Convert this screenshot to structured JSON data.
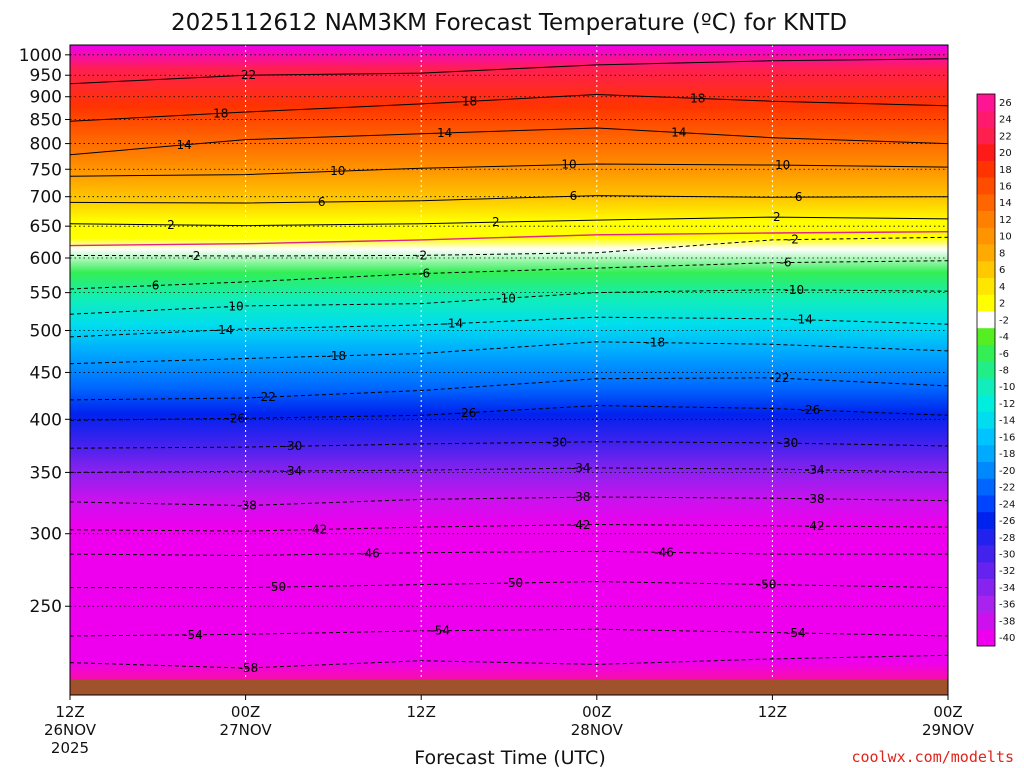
{
  "title": "2025112612 NAM3KM Forecast Temperature (ºC) for KNTD",
  "credit": "coolwx.com/modelts",
  "colors": {
    "ground": "#a0522d",
    "freezing_line": "#e0248a",
    "contour": "#000000"
  },
  "chart_data": {
    "type": "heatmap",
    "title": "2025112612 NAM3KM Forecast Temperature (ºC) for KNTD",
    "xlabel": "Forecast Time (UTC)",
    "ylabel": "",
    "x_hours_range": [
      0,
      60
    ],
    "y_pressure_range": [
      1025,
      200
    ],
    "y_scale": "log-pressure (hPa), decreasing upward",
    "grid": true,
    "colorbar": "right",
    "x_ticks": [
      {
        "hour": 0,
        "line1": "12Z",
        "line2": "26NOV",
        "line3": "2025"
      },
      {
        "hour": 12,
        "line1": "00Z",
        "line2": "27NOV",
        "line3": ""
      },
      {
        "hour": 24,
        "line1": "12Z",
        "line2": "",
        "line3": ""
      },
      {
        "hour": 36,
        "line1": "00Z",
        "line2": "28NOV",
        "line3": ""
      },
      {
        "hour": 48,
        "line1": "12Z",
        "line2": "",
        "line3": ""
      },
      {
        "hour": 60,
        "line1": "00Z",
        "line2": "29NOV",
        "line3": ""
      }
    ],
    "y_ticks": [
      {
        "p": 250,
        "label": "250"
      },
      {
        "p": 300,
        "label": "300"
      },
      {
        "p": 350,
        "label": "350"
      },
      {
        "p": 400,
        "label": "400"
      },
      {
        "p": 450,
        "label": "450"
      },
      {
        "p": 500,
        "label": "500"
      },
      {
        "p": 550,
        "label": "550"
      },
      {
        "p": 600,
        "label": "600"
      },
      {
        "p": 650,
        "label": "650"
      },
      {
        "p": 700,
        "label": "700"
      },
      {
        "p": 750,
        "label": "750"
      },
      {
        "p": 800,
        "label": "800"
      },
      {
        "p": 850,
        "label": "850"
      },
      {
        "p": 900,
        "label": "900"
      },
      {
        "p": 950,
        "label": "950"
      },
      {
        "p": 1000,
        "label": "1000"
      }
    ],
    "colorbar_levels": [
      {
        "label": "26",
        "color": "#ff1493"
      },
      {
        "label": "24",
        "color": "#ff1a6e"
      },
      {
        "label": "22",
        "color": "#ff1f4f"
      },
      {
        "label": "20",
        "color": "#ff1a1a"
      },
      {
        "label": "18",
        "color": "#ff3300"
      },
      {
        "label": "16",
        "color": "#ff4d00"
      },
      {
        "label": "14",
        "color": "#ff6600"
      },
      {
        "label": "12",
        "color": "#ff7f00"
      },
      {
        "label": "10",
        "color": "#ff9400"
      },
      {
        "label": "8",
        "color": "#ffaa00"
      },
      {
        "label": "6",
        "color": "#ffc800"
      },
      {
        "label": "4",
        "color": "#ffe600"
      },
      {
        "label": "2",
        "color": "#ffff00"
      },
      {
        "label": "-2",
        "color": "#ffffff"
      },
      {
        "label": "-4",
        "color": "#55ee22"
      },
      {
        "label": "-6",
        "color": "#33ee55"
      },
      {
        "label": "-8",
        "color": "#22ee88"
      },
      {
        "label": "-10",
        "color": "#11eebb"
      },
      {
        "label": "-12",
        "color": "#00eedd"
      },
      {
        "label": "-14",
        "color": "#00ddee"
      },
      {
        "label": "-16",
        "color": "#00c4ff"
      },
      {
        "label": "-18",
        "color": "#00aaff"
      },
      {
        "label": "-20",
        "color": "#0088ff"
      },
      {
        "label": "-22",
        "color": "#0066ff"
      },
      {
        "label": "-24",
        "color": "#0044ff"
      },
      {
        "label": "-26",
        "color": "#0022ee"
      },
      {
        "label": "-28",
        "color": "#2222ee"
      },
      {
        "label": "-30",
        "color": "#4422ee"
      },
      {
        "label": "-32",
        "color": "#6622ee"
      },
      {
        "label": "-34",
        "color": "#8822ee"
      },
      {
        "label": "-36",
        "color": "#aa22ee"
      },
      {
        "label": "-38",
        "color": "#cc11ee"
      },
      {
        "label": "-40",
        "color": "#ee00ee"
      }
    ],
    "isotherms": [
      {
        "temp": -58,
        "label": "-58",
        "label_hours": [
          12.2
        ],
        "dashed": true,
        "points": [
          [
            0,
            217
          ],
          [
            12,
            214
          ],
          [
            24,
            218
          ],
          [
            36,
            216
          ],
          [
            48,
            219
          ],
          [
            60,
            221
          ]
        ]
      },
      {
        "temp": -54,
        "label": "-54",
        "label_hours": [
          8.4,
          25.3,
          49.6
        ],
        "dashed": true,
        "points": [
          [
            0,
            232
          ],
          [
            12,
            233
          ],
          [
            24,
            235
          ],
          [
            36,
            236
          ],
          [
            48,
            234
          ],
          [
            60,
            232
          ]
        ]
      },
      {
        "temp": -50,
        "label": "-50",
        "label_hours": [
          14.1,
          30.3,
          47.6
        ],
        "dashed": true,
        "points": [
          [
            0,
            262
          ],
          [
            12,
            262
          ],
          [
            24,
            264
          ],
          [
            36,
            266
          ],
          [
            48,
            264
          ],
          [
            60,
            262
          ]
        ]
      },
      {
        "temp": -46,
        "label": "-46",
        "label_hours": [
          20.5,
          40.6
        ],
        "dashed": true,
        "points": [
          [
            0,
            285
          ],
          [
            12,
            284
          ],
          [
            24,
            286
          ],
          [
            36,
            287
          ],
          [
            48,
            285
          ],
          [
            60,
            285
          ]
        ]
      },
      {
        "temp": -42,
        "label": "-42",
        "label_hours": [
          16.9,
          34.9,
          50.9
        ],
        "dashed": true,
        "points": [
          [
            0,
            303
          ],
          [
            12,
            302
          ],
          [
            24,
            305
          ],
          [
            36,
            307
          ],
          [
            48,
            306
          ],
          [
            60,
            305
          ]
        ]
      },
      {
        "temp": -38,
        "label": "-38",
        "label_hours": [
          12.1,
          34.9,
          50.9
        ],
        "dashed": true,
        "points": [
          [
            0,
            325
          ],
          [
            12,
            322
          ],
          [
            24,
            327
          ],
          [
            36,
            329
          ],
          [
            48,
            328
          ],
          [
            60,
            326
          ]
        ]
      },
      {
        "temp": -34,
        "label": "-34",
        "label_hours": [
          15.2,
          34.9,
          50.9
        ],
        "dashed": true,
        "points": [
          [
            0,
            350
          ],
          [
            12,
            351
          ],
          [
            24,
            352
          ],
          [
            36,
            354
          ],
          [
            48,
            353
          ],
          [
            60,
            350
          ]
        ]
      },
      {
        "temp": -30,
        "label": "-30",
        "label_hours": [
          15.2,
          33.3,
          49.1
        ],
        "dashed": true,
        "points": [
          [
            0,
            372
          ],
          [
            12,
            373
          ],
          [
            24,
            376
          ],
          [
            36,
            378
          ],
          [
            48,
            377
          ],
          [
            60,
            374
          ]
        ]
      },
      {
        "temp": -26,
        "label": "-26",
        "label_hours": [
          11.3,
          27.1,
          50.6
        ],
        "dashed": true,
        "points": [
          [
            0,
            399
          ],
          [
            12,
            401
          ],
          [
            24,
            404
          ],
          [
            36,
            414
          ],
          [
            48,
            411
          ],
          [
            60,
            404
          ]
        ]
      },
      {
        "temp": -22,
        "label": "-22",
        "label_hours": [
          13.4,
          48.5
        ],
        "dashed": true,
        "points": [
          [
            0,
            420
          ],
          [
            12,
            422
          ],
          [
            24,
            430
          ],
          [
            36,
            443
          ],
          [
            48,
            444
          ],
          [
            60,
            435
          ]
        ]
      },
      {
        "temp": -18,
        "label": "-18",
        "label_hours": [
          18.2,
          40.0
        ],
        "dashed": true,
        "points": [
          [
            0,
            460
          ],
          [
            12,
            466
          ],
          [
            24,
            472
          ],
          [
            36,
            486
          ],
          [
            48,
            483
          ],
          [
            60,
            475
          ]
        ]
      },
      {
        "temp": -14,
        "label": "-14",
        "label_hours": [
          10.5,
          26.2,
          50.1
        ],
        "dashed": true,
        "points": [
          [
            0,
            492
          ],
          [
            12,
            502
          ],
          [
            24,
            507
          ],
          [
            36,
            517
          ],
          [
            48,
            515
          ],
          [
            60,
            508
          ]
        ]
      },
      {
        "temp": -10,
        "label": "-10",
        "label_hours": [
          11.2,
          29.8,
          49.5
        ],
        "dashed": true,
        "points": [
          [
            0,
            521
          ],
          [
            12,
            532
          ],
          [
            24,
            535
          ],
          [
            36,
            550
          ],
          [
            48,
            554
          ],
          [
            60,
            552
          ]
        ]
      },
      {
        "temp": -6,
        "label": "-6",
        "label_hours": [
          5.7,
          24.2,
          48.9
        ],
        "dashed": true,
        "points": [
          [
            0,
            555
          ],
          [
            12,
            565
          ],
          [
            24,
            577
          ],
          [
            36,
            585
          ],
          [
            48,
            593
          ],
          [
            60,
            596
          ]
        ]
      },
      {
        "temp": -2,
        "label": "-2",
        "label_hours": [
          8.5,
          24.0,
          49.4
        ],
        "dashed": true,
        "points": [
          [
            0,
            604
          ],
          [
            12,
            603
          ],
          [
            24,
            604
          ],
          [
            36,
            608
          ],
          [
            48,
            628
          ],
          [
            60,
            632
          ]
        ]
      },
      {
        "temp": 0,
        "label": "",
        "label_hours": [],
        "dashed": false,
        "freezing": true,
        "points": [
          [
            0,
            619
          ],
          [
            12,
            622
          ],
          [
            24,
            628
          ],
          [
            36,
            636
          ],
          [
            48,
            639
          ],
          [
            60,
            641
          ]
        ]
      },
      {
        "temp": 2,
        "label": "2",
        "label_hours": [
          6.9,
          29.1,
          48.3
        ],
        "dashed": false,
        "points": [
          [
            0,
            654
          ],
          [
            12,
            651
          ],
          [
            24,
            654
          ],
          [
            36,
            660
          ],
          [
            48,
            665
          ],
          [
            60,
            662
          ]
        ]
      },
      {
        "temp": 6,
        "label": "6",
        "label_hours": [
          17.2,
          34.4,
          49.8
        ],
        "dashed": false,
        "points": [
          [
            0,
            690
          ],
          [
            12,
            689
          ],
          [
            24,
            693
          ],
          [
            36,
            702
          ],
          [
            48,
            699
          ],
          [
            60,
            700
          ]
        ]
      },
      {
        "temp": 10,
        "label": "10",
        "label_hours": [
          18.3,
          34.1,
          48.7
        ],
        "dashed": false,
        "points": [
          [
            0,
            737
          ],
          [
            12,
            740
          ],
          [
            24,
            752
          ],
          [
            36,
            760
          ],
          [
            48,
            758
          ],
          [
            60,
            754
          ]
        ]
      },
      {
        "temp": 14,
        "label": "14",
        "label_hours": [
          7.8,
          25.6,
          41.6
        ],
        "dashed": false,
        "points": [
          [
            0,
            778
          ],
          [
            12,
            808
          ],
          [
            24,
            820
          ],
          [
            36,
            832
          ],
          [
            48,
            812
          ],
          [
            60,
            800
          ]
        ]
      },
      {
        "temp": 18,
        "label": "18",
        "label_hours": [
          10.3,
          27.3,
          42.9
        ],
        "dashed": false,
        "points": [
          [
            0,
            846
          ],
          [
            12,
            866
          ],
          [
            24,
            884
          ],
          [
            36,
            905
          ],
          [
            48,
            890
          ],
          [
            60,
            880
          ]
        ]
      },
      {
        "temp": 22,
        "label": "22",
        "label_hours": [
          12.2
        ],
        "dashed": false,
        "points": [
          [
            0,
            930
          ],
          [
            12,
            950
          ],
          [
            24,
            955
          ],
          [
            36,
            975
          ],
          [
            48,
            985
          ],
          [
            60,
            990
          ]
        ]
      }
    ]
  }
}
